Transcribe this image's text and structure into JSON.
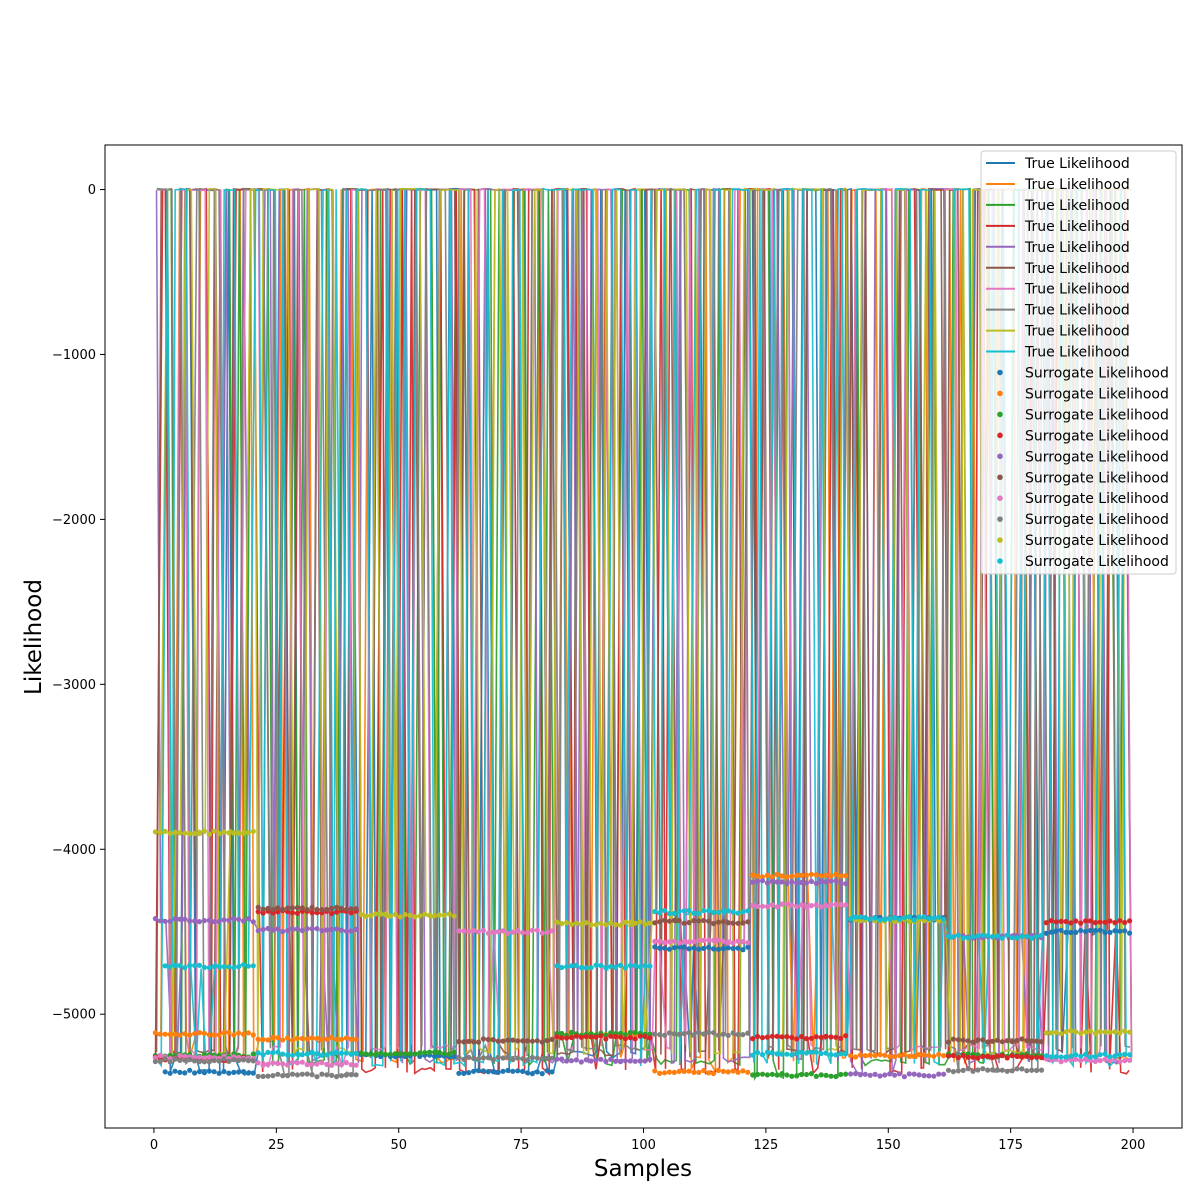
{
  "chart_data": {
    "type": "line",
    "title": "",
    "xlabel": "Samples",
    "ylabel": "Likelihood",
    "xlim": [
      -10,
      210
    ],
    "ylim": [
      -5690,
      270
    ],
    "xticks": [
      0,
      25,
      50,
      75,
      100,
      125,
      150,
      175,
      200
    ],
    "yticks": [
      0,
      -1000,
      -2000,
      -3000,
      -4000,
      -5000
    ],
    "grid": false,
    "legend_position": "top-right",
    "series_colors": [
      "#1f77b4",
      "#ff7f0e",
      "#2ca02c",
      "#d62728",
      "#9467bd",
      "#8c564b",
      "#e377c2",
      "#7f7f7f",
      "#bcbd22",
      "#17becf"
    ],
    "true_series_name": "True Likelihood",
    "surrogate_series_name": "Surrogate Likelihood",
    "surrogate_segments": [
      [
        {
          "start": 2,
          "end": 21,
          "value": -5350
        },
        {
          "start": 42,
          "end": 62,
          "value": -5250
        },
        {
          "start": 62,
          "end": 82,
          "value": -5350
        },
        {
          "start": 102,
          "end": 122,
          "value": -4600
        },
        {
          "start": 142,
          "end": 162,
          "value": -4420
        },
        {
          "start": 182,
          "end": 200,
          "value": -4500
        }
      ],
      [
        {
          "start": 0,
          "end": 21,
          "value": -5120
        },
        {
          "start": 21,
          "end": 42,
          "value": -5150
        },
        {
          "start": 82,
          "end": 102,
          "value": -5130
        },
        {
          "start": 102,
          "end": 122,
          "value": -5350
        },
        {
          "start": 122,
          "end": 142,
          "value": -4160
        },
        {
          "start": 142,
          "end": 162,
          "value": -5250
        }
      ],
      [
        {
          "start": 0,
          "end": 21,
          "value": -5250
        },
        {
          "start": 42,
          "end": 62,
          "value": -5240
        },
        {
          "start": 82,
          "end": 102,
          "value": -5120
        },
        {
          "start": 122,
          "end": 142,
          "value": -5370
        },
        {
          "start": 162,
          "end": 182,
          "value": -5250
        }
      ],
      [
        {
          "start": 0,
          "end": 21,
          "value": -5270
        },
        {
          "start": 21,
          "end": 42,
          "value": -4380
        },
        {
          "start": 82,
          "end": 102,
          "value": -5140
        },
        {
          "start": 122,
          "end": 142,
          "value": -5140
        },
        {
          "start": 162,
          "end": 182,
          "value": -5260
        },
        {
          "start": 182,
          "end": 200,
          "value": -4440
        }
      ],
      [
        {
          "start": 0,
          "end": 21,
          "value": -4430
        },
        {
          "start": 21,
          "end": 42,
          "value": -4490
        },
        {
          "start": 82,
          "end": 102,
          "value": -5280
        },
        {
          "start": 122,
          "end": 142,
          "value": -4200
        },
        {
          "start": 142,
          "end": 162,
          "value": -5370
        },
        {
          "start": 162,
          "end": 182,
          "value": -4530
        }
      ],
      [
        {
          "start": 21,
          "end": 42,
          "value": -4360
        },
        {
          "start": 62,
          "end": 82,
          "value": -5160
        },
        {
          "start": 102,
          "end": 122,
          "value": -4440
        },
        {
          "start": 162,
          "end": 182,
          "value": -5160
        }
      ],
      [
        {
          "start": 0,
          "end": 21,
          "value": -5260
        },
        {
          "start": 21,
          "end": 42,
          "value": -5300
        },
        {
          "start": 62,
          "end": 82,
          "value": -4500
        },
        {
          "start": 102,
          "end": 122,
          "value": -4560
        },
        {
          "start": 122,
          "end": 142,
          "value": -4340
        },
        {
          "start": 182,
          "end": 200,
          "value": -5280
        }
      ],
      [
        {
          "start": 0,
          "end": 21,
          "value": -5280
        },
        {
          "start": 21,
          "end": 42,
          "value": -5370
        },
        {
          "start": 62,
          "end": 82,
          "value": -5270
        },
        {
          "start": 102,
          "end": 122,
          "value": -5120
        },
        {
          "start": 162,
          "end": 182,
          "value": -5340
        }
      ],
      [
        {
          "start": 0,
          "end": 21,
          "value": -3900
        },
        {
          "start": 42,
          "end": 62,
          "value": -4400
        },
        {
          "start": 82,
          "end": 102,
          "value": -4450
        },
        {
          "start": 142,
          "end": 162,
          "value": -4430
        },
        {
          "start": 182,
          "end": 200,
          "value": -5110
        }
      ],
      [
        {
          "start": 2,
          "end": 21,
          "value": -4710
        },
        {
          "start": 21,
          "end": 42,
          "value": -5240
        },
        {
          "start": 82,
          "end": 102,
          "value": -4710
        },
        {
          "start": 102,
          "end": 122,
          "value": -4380
        },
        {
          "start": 122,
          "end": 142,
          "value": -5240
        },
        {
          "start": 142,
          "end": 162,
          "value": -4420
        },
        {
          "start": 162,
          "end": 182,
          "value": -4530
        },
        {
          "start": 182,
          "end": 200,
          "value": -5250
        }
      ]
    ]
  }
}
